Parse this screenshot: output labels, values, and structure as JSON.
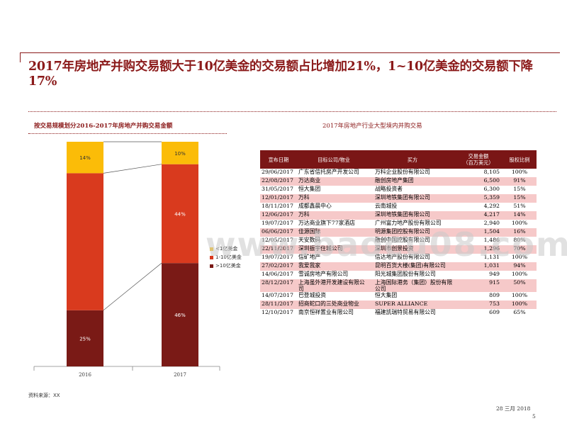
{
  "title": "2017年房地产并购交易额大于10亿美金的交易额占比增加21%，1~10亿美金的交易额下降17%",
  "chart_data": {
    "type": "bar",
    "stacked": true,
    "percent": true,
    "title": "按交易规模划分2016-2017年房地产并购交易金额",
    "categories": [
      "2016",
      "2017"
    ],
    "series": [
      {
        "name": ">10亿美金",
        "color": "#7a1a16",
        "values": [
          25,
          46
        ]
      },
      {
        "name": "1-10亿美金",
        "color": "#d93a1e",
        "values": [
          61,
          44
        ]
      },
      {
        "name": "<1亿美金",
        "color": "#fbbc08",
        "values": [
          14,
          10
        ]
      }
    ],
    "data_labels": [
      [
        "25%",
        "",
        "14%"
      ],
      [
        "46%",
        "44%",
        "10%"
      ]
    ],
    "legend_position": "right",
    "ylim": [
      0,
      100
    ]
  },
  "table": {
    "title": "2017年房地产行业大型境内并购交易",
    "headers": [
      "宣布日期",
      "目标公司/物业",
      "买方",
      "交易金额\n（百万美元）",
      "股权比例"
    ],
    "rows": [
      [
        "29/06/2017",
        "广东省信托房产开发公司",
        "万科企业股份有限公司",
        "8,105",
        "100%"
      ],
      [
        "22/08/2017",
        "万达商业",
        "融创房地产集团",
        "6,500",
        "91%"
      ],
      [
        "31/05/2017",
        "恒大集团",
        "战略投资者",
        "6,300",
        "15%"
      ],
      [
        "12/01/2017",
        "万科",
        "深圳地铁集团有限公司",
        "5,359",
        "15%"
      ],
      [
        "18/11/2017",
        "成都鑫晨中心",
        "云南城投",
        "4,292",
        "51%"
      ],
      [
        "12/06/2017",
        "万科",
        "深圳地铁集团有限公司",
        "4,217",
        "14%"
      ],
      [
        "19/07/2017",
        "万达商业旗下77家酒店",
        "广州富力地产股份有限公司",
        "2,940",
        "100%"
      ],
      [
        "06/06/2017",
        "佳源国际",
        "明源集团控股有限公司",
        "1,504",
        "16%"
      ],
      [
        "12/05/2017",
        "天安数码",
        "融创中国控股有限公司",
        "1,486",
        "80%"
      ],
      [
        "22/11/2017",
        "深圳振宇住城公司",
        "深圳市创景投资",
        "1,296",
        "70%"
      ],
      [
        "19/07/2017",
        "信矿地产",
        "信达地产股份有限公司",
        "1,131",
        "100%"
      ],
      [
        "27/02/2017",
        "我爱我家",
        "昆明百货大楼(集团)有限公司",
        "1,031",
        "94%"
      ],
      [
        "14/06/2017",
        "雪诚房地产有限公司",
        "阳光城集团股份有限公司",
        "949",
        "100%"
      ],
      [
        "28/12/2017",
        "上海虽外港开发建设有限公司",
        "上海国际港务（集团）股份有限公司",
        "915",
        "50%"
      ],
      [
        "14/07/2017",
        "巴登城投资",
        "恒大集团",
        "809",
        "100%"
      ],
      [
        "28/11/2017",
        "招商蛇口的三处商业物业",
        "SUPER ALLIANCE",
        "753",
        "100%"
      ],
      [
        "12/10/2017",
        "南京恒祥置业有限公司",
        "福建凯瑞特贸易有限公司",
        "609",
        "65%"
      ]
    ]
  },
  "source": "资料来源：XX",
  "date": "28 三月 2018",
  "page_number": "5",
  "watermark": "www.baocu08.com"
}
